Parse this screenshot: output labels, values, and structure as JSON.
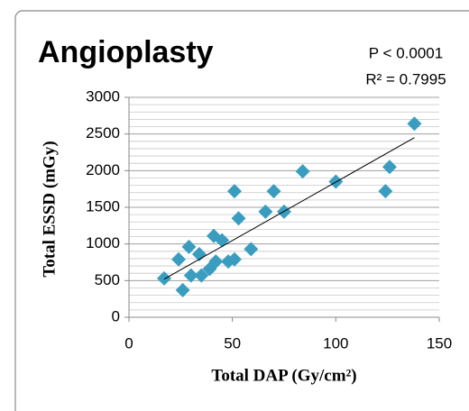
{
  "chart_data": {
    "type": "scatter",
    "title": "Angioplasty",
    "annotations": [
      "P < 0.0001",
      "R² = 0.7995"
    ],
    "x_label": "Total DAP (Gy/cm²)",
    "y_label": "Total ESSD (mGy)",
    "series": [
      {
        "name": "Angioplasty",
        "color": "#3a9dc0",
        "x": [
          17,
          24,
          26,
          29,
          30,
          34,
          35,
          39,
          41,
          42,
          45,
          48,
          51,
          51,
          53,
          59,
          66,
          70,
          75,
          84,
          100,
          124,
          126,
          138
        ],
        "values": [
          530,
          790,
          370,
          960,
          570,
          860,
          570,
          660,
          1110,
          760,
          1050,
          760,
          790,
          1720,
          1350,
          930,
          1440,
          1720,
          1440,
          1990,
          1850,
          1720,
          2050,
          2640
        ]
      }
    ],
    "trendline": {
      "x": [
        17,
        138
      ],
      "values": [
        520,
        2450
      ],
      "color": "#000000"
    },
    "xlim": [
      0,
      150
    ],
    "xticks": [
      0,
      50,
      100,
      150
    ],
    "ylim": [
      0,
      3000
    ],
    "yticks": [
      0,
      500,
      1000,
      1500,
      2000,
      2500,
      3000
    ],
    "minor_yticks": [
      100,
      200,
      300,
      400,
      600,
      700,
      800,
      900,
      1100,
      1200,
      1300,
      1400,
      1600,
      1700,
      1800,
      1900,
      2100,
      2200,
      2300,
      2400,
      2600,
      2700,
      2800,
      2900
    ],
    "grid": true
  }
}
